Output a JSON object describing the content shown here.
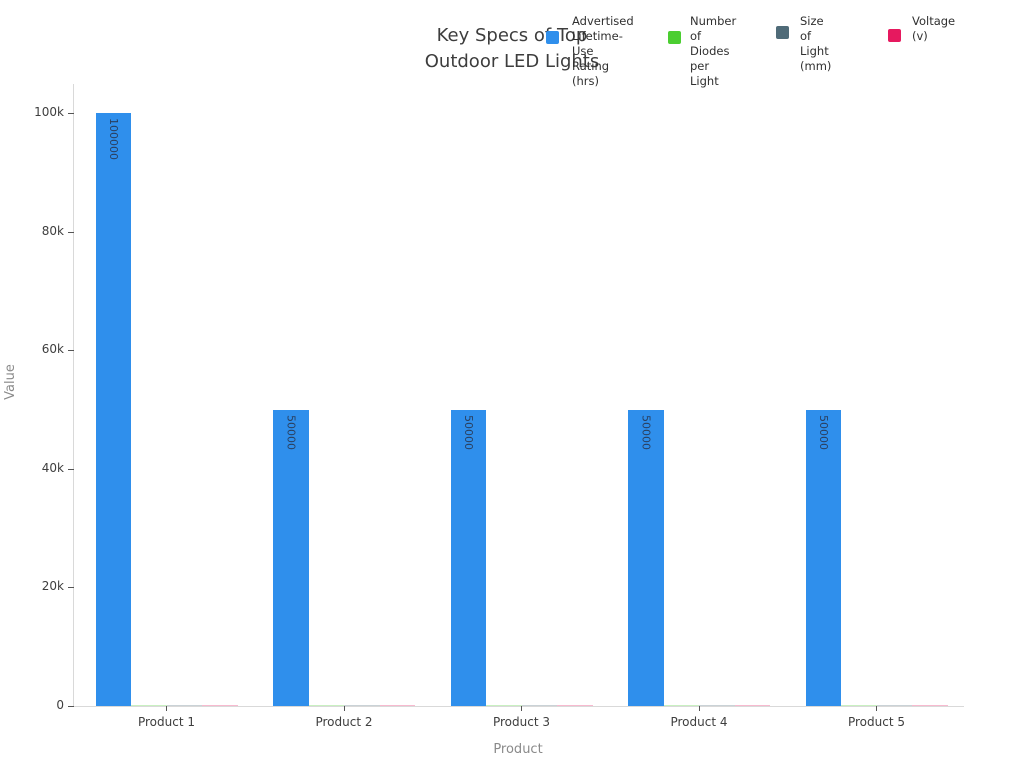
{
  "title": "Key Specs of Top\nOutdoor LED Lights",
  "chart_data": {
    "type": "bar",
    "title": "Key Specs of Top Outdoor LED Lights",
    "xlabel": "Product",
    "ylabel": "Value",
    "categories": [
      "Product 1",
      "Product 2",
      "Product 3",
      "Product 4",
      "Product 5"
    ],
    "ylim": [
      0,
      100000
    ],
    "grid": false,
    "legend_position": "top",
    "yticks": [
      {
        "v": 0,
        "label": "0"
      },
      {
        "v": 20000,
        "label": "20k"
      },
      {
        "v": 40000,
        "label": "40k"
      },
      {
        "v": 60000,
        "label": "60k"
      },
      {
        "v": 80000,
        "label": "80k"
      },
      {
        "v": 100000,
        "label": "100k"
      }
    ],
    "series": [
      {
        "name": "Advertised Lifetime-Use Rating (hrs)",
        "legend_label": "Advertised\nLifetime-Use\nRating (hrs)",
        "color": "#2f8fec",
        "values": [
          100000,
          50000,
          50000,
          50000,
          50000
        ],
        "bar_labels": [
          "100000",
          "50000",
          "50000",
          "50000",
          "50000"
        ]
      },
      {
        "name": "Number of Diodes per Light",
        "legend_label": "Number of\nDiodes per\nLight",
        "color": "#4bce31",
        "values": [
          null,
          null,
          null,
          null,
          null
        ],
        "note": "bars too small to read at this axis scale (near 0)"
      },
      {
        "name": "Size of Light (mm)",
        "legend_label": "Size of\nLight (mm)",
        "color": "#4f6b78",
        "values": [
          null,
          null,
          null,
          null,
          null
        ],
        "note": "bars too small to read at this axis scale (near 0)"
      },
      {
        "name": "Voltage (v)",
        "legend_label": "Voltage\n(v)",
        "color": "#e6195f",
        "values": [
          null,
          null,
          null,
          null,
          null
        ],
        "note": "bars too small to read at this axis scale (near 0)"
      }
    ]
  }
}
